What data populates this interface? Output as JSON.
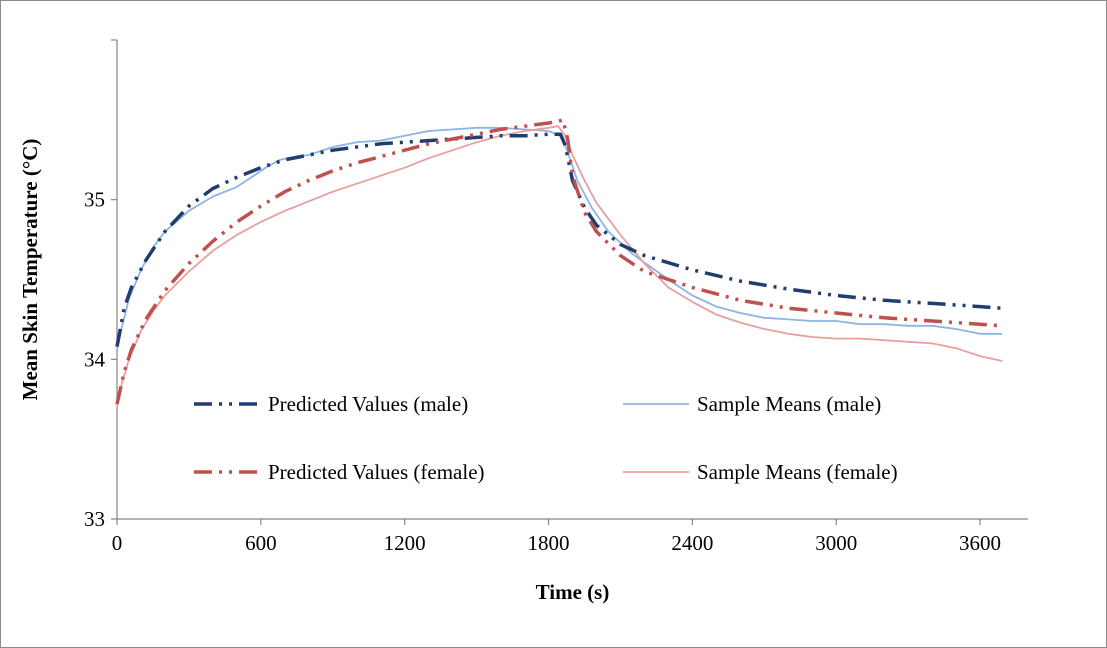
{
  "chart_data": {
    "type": "line",
    "title": "",
    "xlabel": "Time (s)",
    "ylabel": "Mean Skin Temperature (°C)",
    "xlim": [
      0,
      3800
    ],
    "ylim": [
      33,
      36
    ],
    "x_ticks": [
      0,
      600,
      1200,
      1800,
      2400,
      3000,
      3600
    ],
    "y_ticks": [
      33,
      34,
      35
    ],
    "grid": false,
    "legend_position": "center-bottom, inside plot",
    "series": [
      {
        "name": "Predicted Values (male)",
        "color": "#1f3d6e",
        "style": "dash-dot-dot",
        "x": [
          0,
          30,
          60,
          120,
          200,
          300,
          400,
          500,
          600,
          700,
          800,
          900,
          1000,
          1100,
          1200,
          1300,
          1400,
          1500,
          1600,
          1700,
          1800,
          1850,
          1870,
          1900,
          1950,
          2000,
          2100,
          2200,
          2400,
          2600,
          2800,
          3000,
          3200,
          3400,
          3600,
          3690
        ],
        "y": [
          34.08,
          34.32,
          34.45,
          34.62,
          34.8,
          34.96,
          35.07,
          35.14,
          35.2,
          35.25,
          35.28,
          35.31,
          35.33,
          35.35,
          35.36,
          35.37,
          35.38,
          35.39,
          35.4,
          35.4,
          35.41,
          35.41,
          35.34,
          35.12,
          34.95,
          34.84,
          34.72,
          34.65,
          34.56,
          34.49,
          34.44,
          34.4,
          34.37,
          34.35,
          34.33,
          34.32
        ]
      },
      {
        "name": "Sample Means (male)",
        "color": "#8eb4e3",
        "style": "solid",
        "x": [
          0,
          20,
          50,
          100,
          150,
          200,
          300,
          400,
          500,
          560,
          620,
          680,
          750,
          800,
          900,
          1000,
          1100,
          1200,
          1300,
          1400,
          1500,
          1600,
          1700,
          1800,
          1850,
          1880,
          1920,
          1980,
          2050,
          2150,
          2300,
          2400,
          2500,
          2600,
          2700,
          2800,
          2900,
          3000,
          3100,
          3200,
          3300,
          3400,
          3500,
          3600,
          3690
        ],
        "y": [
          34.06,
          34.2,
          34.38,
          34.56,
          34.7,
          34.8,
          34.93,
          35.02,
          35.08,
          35.14,
          35.2,
          35.25,
          35.27,
          35.28,
          35.33,
          35.36,
          35.37,
          35.4,
          35.43,
          35.44,
          35.45,
          35.45,
          35.44,
          35.43,
          35.4,
          35.3,
          35.12,
          34.95,
          34.8,
          34.66,
          34.5,
          34.4,
          34.33,
          34.29,
          34.26,
          34.25,
          34.24,
          34.24,
          34.22,
          34.22,
          34.21,
          34.21,
          34.19,
          34.16,
          34.16
        ]
      },
      {
        "name": "Predicted Values (female)",
        "color": "#c0504d",
        "style": "dash-dot-dot",
        "x": [
          0,
          30,
          60,
          120,
          200,
          300,
          400,
          500,
          600,
          700,
          800,
          900,
          1000,
          1100,
          1200,
          1300,
          1400,
          1500,
          1600,
          1700,
          1800,
          1840,
          1860,
          1880,
          1900,
          1950,
          2000,
          2100,
          2200,
          2400,
          2600,
          2800,
          3000,
          3200,
          3400,
          3600,
          3690
        ],
        "y": [
          33.72,
          33.92,
          34.06,
          34.25,
          34.43,
          34.6,
          34.74,
          34.86,
          34.96,
          35.05,
          35.12,
          35.18,
          35.23,
          35.27,
          35.31,
          35.35,
          35.38,
          35.41,
          35.44,
          35.46,
          35.48,
          35.49,
          35.5,
          35.38,
          35.15,
          34.92,
          34.8,
          34.65,
          34.55,
          34.45,
          34.37,
          34.32,
          34.29,
          34.26,
          34.24,
          34.22,
          34.21
        ]
      },
      {
        "name": "Sample Means (female)",
        "color": "#e6a09e",
        "style": "solid",
        "x": [
          0,
          20,
          50,
          100,
          150,
          200,
          300,
          400,
          500,
          600,
          700,
          800,
          900,
          1000,
          1100,
          1200,
          1300,
          1400,
          1500,
          1600,
          1700,
          1800,
          1840,
          1870,
          1900,
          1950,
          2000,
          2100,
          2200,
          2300,
          2400,
          2500,
          2600,
          2700,
          2800,
          2900,
          3000,
          3100,
          3200,
          3300,
          3400,
          3500,
          3600,
          3690
        ],
        "y": [
          33.7,
          33.85,
          34.0,
          34.18,
          34.3,
          34.4,
          34.55,
          34.68,
          34.78,
          34.86,
          34.93,
          34.99,
          35.05,
          35.1,
          35.15,
          35.2,
          35.26,
          35.31,
          35.36,
          35.4,
          35.43,
          35.45,
          35.46,
          35.4,
          35.28,
          35.12,
          34.98,
          34.78,
          34.6,
          34.45,
          34.36,
          34.28,
          34.23,
          34.19,
          34.16,
          34.14,
          34.13,
          34.13,
          34.12,
          34.11,
          34.1,
          34.07,
          34.02,
          33.99
        ]
      }
    ]
  }
}
